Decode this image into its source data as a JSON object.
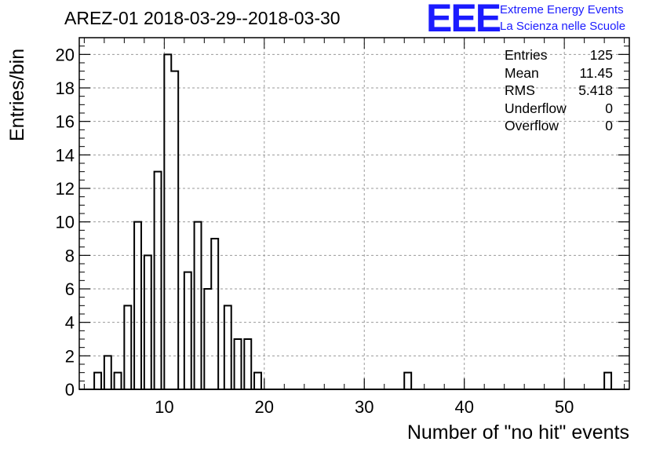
{
  "header": {
    "title": "AREZ-01 2018-03-29--2018-03-30",
    "logo_mark": "EEE",
    "logo_line1": "Extreme Energy Events",
    "logo_line2": "La Scienza nelle Scuole"
  },
  "stats": [
    {
      "label": "Entries",
      "value": "125"
    },
    {
      "label": "Mean",
      "value": "11.45"
    },
    {
      "label": "RMS",
      "value": "5.418"
    },
    {
      "label": "Underflow",
      "value": "0"
    },
    {
      "label": "Overflow",
      "value": "0"
    }
  ],
  "colors": {
    "logo": "#1b1bff",
    "line": "#000000",
    "grid": "#9a9a9a"
  },
  "chart_data": {
    "type": "bar",
    "title": "AREZ-01 2018-03-29--2018-03-30",
    "xlabel": "Number of \"no hit\" events",
    "ylabel": "Entries/bin",
    "xlim": [
      1.5,
      56.5
    ],
    "ylim": [
      0,
      21
    ],
    "bin_width": 0.7,
    "grid": true,
    "x_ticks": [
      10,
      20,
      30,
      40,
      50
    ],
    "y_ticks": [
      0,
      2,
      4,
      6,
      8,
      10,
      12,
      14,
      16,
      18,
      20
    ],
    "bins": [
      {
        "x": 3,
        "count": 1
      },
      {
        "x": 4,
        "count": 2
      },
      {
        "x": 5,
        "count": 1
      },
      {
        "x": 6,
        "count": 5
      },
      {
        "x": 7,
        "count": 10
      },
      {
        "x": 8,
        "count": 8
      },
      {
        "x": 9,
        "count": 13
      },
      {
        "x": 10,
        "count": 20
      },
      {
        "x": 10.7,
        "count": 19
      },
      {
        "x": 12,
        "count": 7
      },
      {
        "x": 13,
        "count": 10
      },
      {
        "x": 14,
        "count": 6
      },
      {
        "x": 14.7,
        "count": 9
      },
      {
        "x": 16,
        "count": 5
      },
      {
        "x": 17,
        "count": 3
      },
      {
        "x": 18,
        "count": 3
      },
      {
        "x": 19,
        "count": 1
      },
      {
        "x": 34,
        "count": 1
      },
      {
        "x": 54,
        "count": 1
      }
    ]
  }
}
